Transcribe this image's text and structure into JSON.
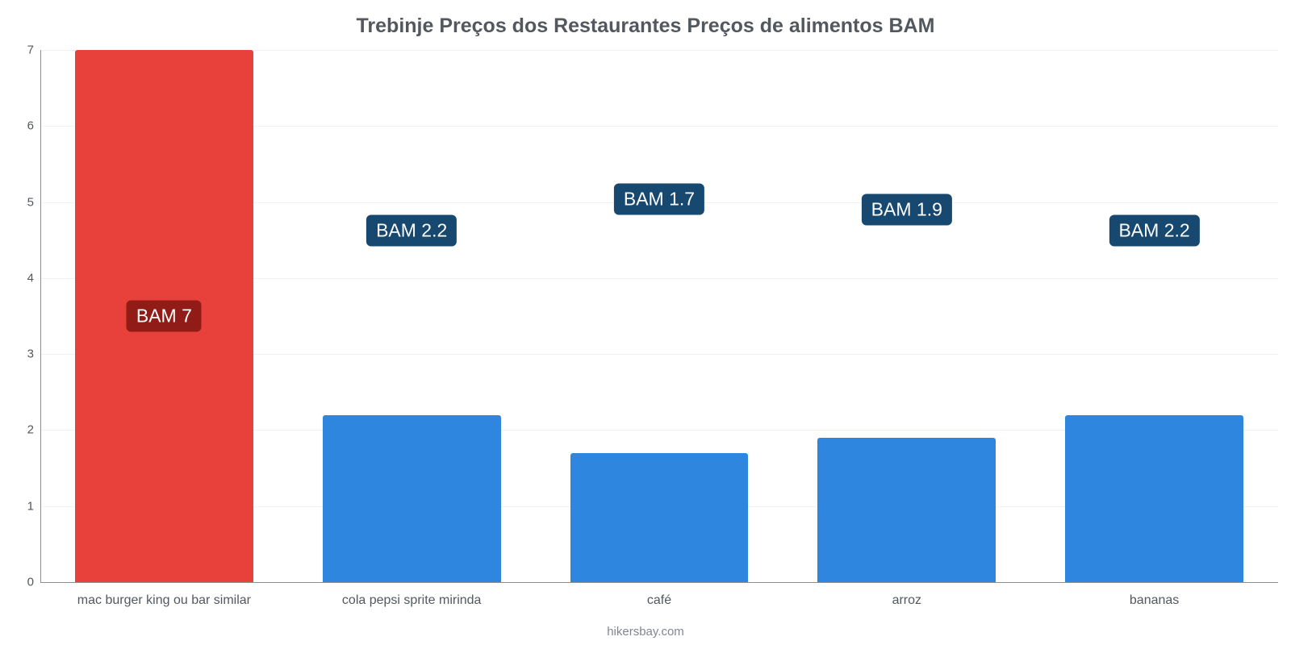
{
  "chart": {
    "type": "bar",
    "title": "Trebinje Preços dos Restaurantes Preços de alimentos BAM",
    "title_fontsize": 25,
    "title_color": "#53585f",
    "background_color": "#ffffff",
    "ylim": [
      0,
      7
    ],
    "ytick_step": 1,
    "yticks": [
      0,
      1,
      2,
      3,
      4,
      5,
      6,
      7
    ],
    "ytick_fontsize": 15,
    "ytick_color": "#53585f",
    "gridline_color": "#f2f2f2",
    "axis_line_color": "#8e8e8e",
    "bar_width_ratio": 0.72,
    "categories": [
      "mac burger king ou bar similar",
      "cola pepsi sprite mirinda",
      "café",
      "arroz",
      "bananas"
    ],
    "values": [
      7,
      2.2,
      1.7,
      1.9,
      2.2
    ],
    "value_labels": [
      "BAM 7",
      "BAM 2.2",
      "BAM 1.7",
      "BAM 1.9",
      "BAM 2.2"
    ],
    "bar_colors": [
      "#e8403a",
      "#2e86de",
      "#2e86de",
      "#2e86de",
      "#2e86de"
    ],
    "label_bg_colors": [
      "#911b16",
      "#17486f",
      "#17486f",
      "#17486f",
      "#17486f"
    ],
    "value_label_fontsize": 23,
    "xlabel_fontsize": 16,
    "xlabel_color": "#53585f",
    "value_label_offsets_pct": [
      50,
      34,
      28,
      30,
      34
    ],
    "footer": "hikersbay.com",
    "footer_fontsize": 15,
    "footer_color": "#808693"
  }
}
